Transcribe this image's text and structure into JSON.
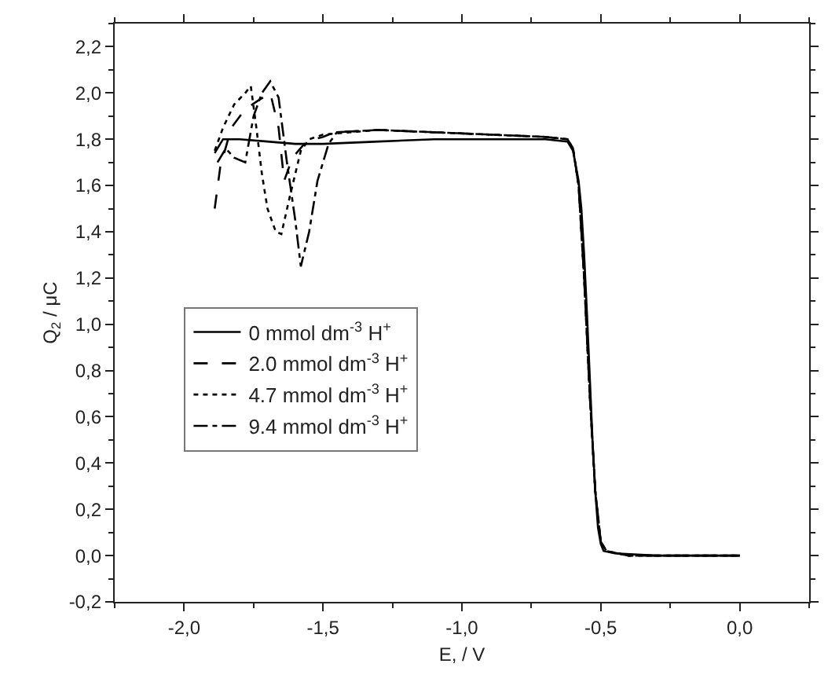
{
  "chart_data": {
    "type": "line",
    "xlabel": "E, / V",
    "ylabel": "Q$_{2}$ / μC",
    "xlim": [
      -2.25,
      0.25
    ],
    "ylim": [
      -0.2,
      2.3
    ],
    "xticks": [
      {
        "value": -2.0,
        "label": "-2,0"
      },
      {
        "value": -1.5,
        "label": "-1,5"
      },
      {
        "value": -1.0,
        "label": "-1,0"
      },
      {
        "value": -0.5,
        "label": "-0,5"
      },
      {
        "value": 0.0,
        "label": "0,0"
      }
    ],
    "yticks": [
      {
        "value": -0.2,
        "label": "-0,2"
      },
      {
        "value": 0.0,
        "label": "0,0"
      },
      {
        "value": 0.2,
        "label": "0,2"
      },
      {
        "value": 0.4,
        "label": "0,4"
      },
      {
        "value": 0.6,
        "label": "0,6"
      },
      {
        "value": 0.8,
        "label": "0,8"
      },
      {
        "value": 1.0,
        "label": "1,0"
      },
      {
        "value": 1.2,
        "label": "1,2"
      },
      {
        "value": 1.4,
        "label": "1,4"
      },
      {
        "value": 1.6,
        "label": "1,6"
      },
      {
        "value": 1.8,
        "label": "1,8"
      },
      {
        "value": 2.0,
        "label": "2,0"
      },
      {
        "value": 2.2,
        "label": "2,2"
      }
    ],
    "legend": "left",
    "marker": "none",
    "series": [
      {
        "name": "0 mmol dm$^{-3}$ H$^{+}$",
        "color": "#000000",
        "line_style": "solid",
        "x": [
          -1.89,
          -1.86,
          -1.8,
          -1.7,
          -1.6,
          -1.5,
          -1.3,
          -1.1,
          -0.9,
          -0.7,
          -0.62,
          -0.6,
          -0.58,
          -0.57,
          -0.56,
          -0.55,
          -0.54,
          -0.53,
          -0.52,
          -0.51,
          -0.5,
          -0.49,
          -0.45,
          -0.3,
          -0.15,
          0.0
        ],
        "values": [
          1.74,
          1.8,
          1.8,
          1.79,
          1.78,
          1.78,
          1.79,
          1.8,
          1.8,
          1.8,
          1.79,
          1.75,
          1.62,
          1.5,
          1.3,
          1.05,
          0.78,
          0.5,
          0.28,
          0.12,
          0.05,
          0.02,
          0.01,
          0.0,
          0.0,
          0.0
        ]
      },
      {
        "name": "2.0 mmol dm$^{-3}$ H$^{+}$",
        "color": "#000000",
        "line_style": "dashed",
        "x": [
          -1.89,
          -1.87,
          -1.83,
          -1.78,
          -1.73,
          -1.69,
          -1.66,
          -1.64,
          -1.61,
          -1.56,
          -1.5,
          -1.46,
          -1.3,
          -1.1,
          -0.9,
          -0.7,
          -0.62,
          -0.6,
          -0.58,
          -0.56,
          -0.54,
          -0.52,
          -0.5,
          -0.48,
          -0.4,
          -0.2,
          0.0
        ],
        "values": [
          1.5,
          1.68,
          1.85,
          1.93,
          1.97,
          2.0,
          1.85,
          1.62,
          1.72,
          1.79,
          1.81,
          1.83,
          1.84,
          1.83,
          1.82,
          1.81,
          1.8,
          1.76,
          1.6,
          1.2,
          0.7,
          0.28,
          0.06,
          0.02,
          0.0,
          0.0,
          0.0
        ]
      },
      {
        "name": "4.7 mmol dm$^{-3}$ H$^{+}$",
        "color": "#000000",
        "line_style": "dotted",
        "x": [
          -1.89,
          -1.86,
          -1.82,
          -1.78,
          -1.76,
          -1.74,
          -1.72,
          -1.7,
          -1.67,
          -1.65,
          -1.62,
          -1.58,
          -1.55,
          -1.5,
          -1.3,
          -1.1,
          -0.9,
          -0.7,
          -0.62,
          -0.6,
          -0.58,
          -0.56,
          -0.54,
          -0.52,
          -0.5,
          -0.48,
          -0.4,
          -0.2,
          0.0
        ],
        "values": [
          1.75,
          1.85,
          1.95,
          2.0,
          2.03,
          1.85,
          1.65,
          1.5,
          1.4,
          1.39,
          1.55,
          1.75,
          1.8,
          1.82,
          1.84,
          1.83,
          1.82,
          1.81,
          1.8,
          1.76,
          1.6,
          1.2,
          0.7,
          0.28,
          0.06,
          0.02,
          0.0,
          0.0,
          0.0
        ]
      },
      {
        "name": "9.4 mmol dm$^{-3}$ H$^{+}$",
        "color": "#000000",
        "line_style": "dashdot",
        "x": [
          -1.88,
          -1.85,
          -1.82,
          -1.78,
          -1.75,
          -1.72,
          -1.69,
          -1.66,
          -1.63,
          -1.6,
          -1.58,
          -1.55,
          -1.52,
          -1.48,
          -1.45,
          -1.3,
          -1.1,
          -0.9,
          -0.7,
          -0.62,
          -0.6,
          -0.58,
          -0.56,
          -0.54,
          -0.52,
          -0.5,
          -0.48,
          -0.4,
          -0.2,
          0.0
        ],
        "values": [
          1.7,
          1.76,
          1.72,
          1.7,
          1.9,
          2.0,
          2.05,
          1.98,
          1.7,
          1.45,
          1.25,
          1.4,
          1.62,
          1.78,
          1.83,
          1.84,
          1.83,
          1.82,
          1.81,
          1.8,
          1.76,
          1.6,
          1.2,
          0.7,
          0.28,
          0.06,
          0.02,
          0.0,
          0.0,
          0.0
        ]
      }
    ]
  }
}
